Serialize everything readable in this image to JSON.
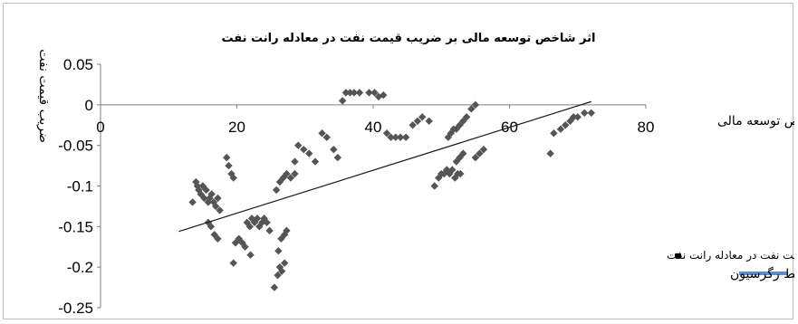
{
  "chart_data": {
    "type": "scatter",
    "title": "اثر شاخص توسعه مالی بر ضریب قیمت نفت در معادله رانت نفت",
    "xlabel": "شاخص توسعه مالی",
    "ylabel": "ضریب قیمت نفت",
    "xlim": [
      0,
      80
    ],
    "ylim": [
      -0.25,
      0.05
    ],
    "xticks": [
      0,
      20,
      40,
      60,
      80
    ],
    "yticks": [
      0.05,
      0,
      -0.05,
      -0.1,
      -0.15,
      -0.2,
      -0.25
    ],
    "ytick_labels": [
      "0.05",
      "0",
      "-0.05",
      "-0.1",
      "-0.15",
      "-0.2",
      "-0.25"
    ],
    "xtick_labels": [
      "0",
      "20",
      "40",
      "60",
      "80"
    ],
    "grid": false,
    "legend_position": "right",
    "series": [
      {
        "name": "پراکنش ضریب قیمت نفت در معادله رانت نفت",
        "kind": "scatter",
        "color": "#555555",
        "marker": "diamond",
        "points": [
          [
            13.5,
            -0.12
          ],
          [
            14,
            -0.095
          ],
          [
            14.2,
            -0.1
          ],
          [
            14.4,
            -0.105
          ],
          [
            14.7,
            -0.11
          ],
          [
            15,
            -0.1
          ],
          [
            15.2,
            -0.115
          ],
          [
            15.5,
            -0.105
          ],
          [
            15.8,
            -0.12
          ],
          [
            16,
            -0.115
          ],
          [
            16.3,
            -0.11
          ],
          [
            16.6,
            -0.12
          ],
          [
            16.9,
            -0.125
          ],
          [
            17.2,
            -0.115
          ],
          [
            17.5,
            -0.13
          ],
          [
            15.8,
            -0.145
          ],
          [
            16.2,
            -0.15
          ],
          [
            16.7,
            -0.16
          ],
          [
            17.2,
            -0.165
          ],
          [
            18.5,
            -0.065
          ],
          [
            18.8,
            -0.075
          ],
          [
            19.2,
            -0.085
          ],
          [
            19.5,
            -0.09
          ],
          [
            19.5,
            -0.195
          ],
          [
            19.8,
            -0.17
          ],
          [
            20.3,
            -0.165
          ],
          [
            20.8,
            -0.17
          ],
          [
            21.2,
            -0.175
          ],
          [
            21.5,
            -0.145
          ],
          [
            21.9,
            -0.15
          ],
          [
            22.2,
            -0.14
          ],
          [
            22.6,
            -0.145
          ],
          [
            23,
            -0.14
          ],
          [
            23.3,
            -0.15
          ],
          [
            23.7,
            -0.145
          ],
          [
            24,
            -0.14
          ],
          [
            24.4,
            -0.145
          ],
          [
            24.8,
            -0.155
          ],
          [
            22,
            -0.185
          ],
          [
            25.5,
            -0.225
          ],
          [
            26,
            -0.21
          ],
          [
            26.3,
            -0.2
          ],
          [
            26.6,
            -0.205
          ],
          [
            27,
            -0.195
          ],
          [
            26.1,
            -0.18
          ],
          [
            26.5,
            -0.165
          ],
          [
            27,
            -0.16
          ],
          [
            27.3,
            -0.155
          ],
          [
            25.8,
            -0.105
          ],
          [
            26.3,
            -0.095
          ],
          [
            26.8,
            -0.09
          ],
          [
            27.3,
            -0.085
          ],
          [
            27.9,
            -0.09
          ],
          [
            28.5,
            -0.085
          ],
          [
            28.5,
            -0.07
          ],
          [
            29,
            -0.05
          ],
          [
            29.8,
            -0.055
          ],
          [
            30.6,
            -0.06
          ],
          [
            31.5,
            -0.07
          ],
          [
            32.5,
            -0.035
          ],
          [
            33.2,
            -0.04
          ],
          [
            34.2,
            -0.055
          ],
          [
            34.8,
            -0.065
          ],
          [
            35.5,
            0.005
          ],
          [
            36,
            0.015
          ],
          [
            36.6,
            0.015
          ],
          [
            37.2,
            0.015
          ],
          [
            38,
            0.015
          ],
          [
            39.4,
            0.015
          ],
          [
            40.2,
            0.015
          ],
          [
            40.8,
            0.01
          ],
          [
            41.5,
            0.012
          ],
          [
            42,
            -0.035
          ],
          [
            42.6,
            -0.04
          ],
          [
            43.3,
            -0.04
          ],
          [
            44,
            -0.04
          ],
          [
            44.8,
            -0.04
          ],
          [
            45.8,
            -0.025
          ],
          [
            46.5,
            -0.02
          ],
          [
            47.2,
            -0.015
          ],
          [
            48.2,
            -0.02
          ],
          [
            49,
            -0.1
          ],
          [
            49.6,
            -0.09
          ],
          [
            50,
            -0.085
          ],
          [
            50.4,
            -0.085
          ],
          [
            50.8,
            -0.08
          ],
          [
            51.2,
            -0.085
          ],
          [
            51.6,
            -0.08
          ],
          [
            52,
            -0.09
          ],
          [
            52.4,
            -0.085
          ],
          [
            52.8,
            -0.085
          ],
          [
            51,
            -0.04
          ],
          [
            51.4,
            -0.035
          ],
          [
            51.8,
            -0.03
          ],
          [
            52.2,
            -0.03
          ],
          [
            52.7,
            -0.025
          ],
          [
            53.2,
            -0.02
          ],
          [
            53.7,
            -0.015
          ],
          [
            52.2,
            -0.07
          ],
          [
            52.7,
            -0.065
          ],
          [
            53.2,
            -0.06
          ],
          [
            54.4,
            -0.005
          ],
          [
            55,
            0
          ],
          [
            55,
            -0.065
          ],
          [
            55.6,
            -0.06
          ],
          [
            56.2,
            -0.055
          ],
          [
            66,
            -0.06
          ],
          [
            66.5,
            -0.035
          ],
          [
            67.5,
            -0.03
          ],
          [
            68.2,
            -0.025
          ],
          [
            68.9,
            -0.02
          ],
          [
            69.4,
            -0.015
          ],
          [
            70,
            -0.015
          ],
          [
            71,
            -0.01
          ],
          [
            72,
            -0.01
          ]
        ]
      },
      {
        "name": "خط رگرسیون",
        "kind": "line",
        "color": "#1a1a1a",
        "legend_color": "#5b8fc8",
        "points": [
          [
            11.5,
            -0.156
          ],
          [
            72,
            0.004
          ]
        ]
      }
    ]
  }
}
